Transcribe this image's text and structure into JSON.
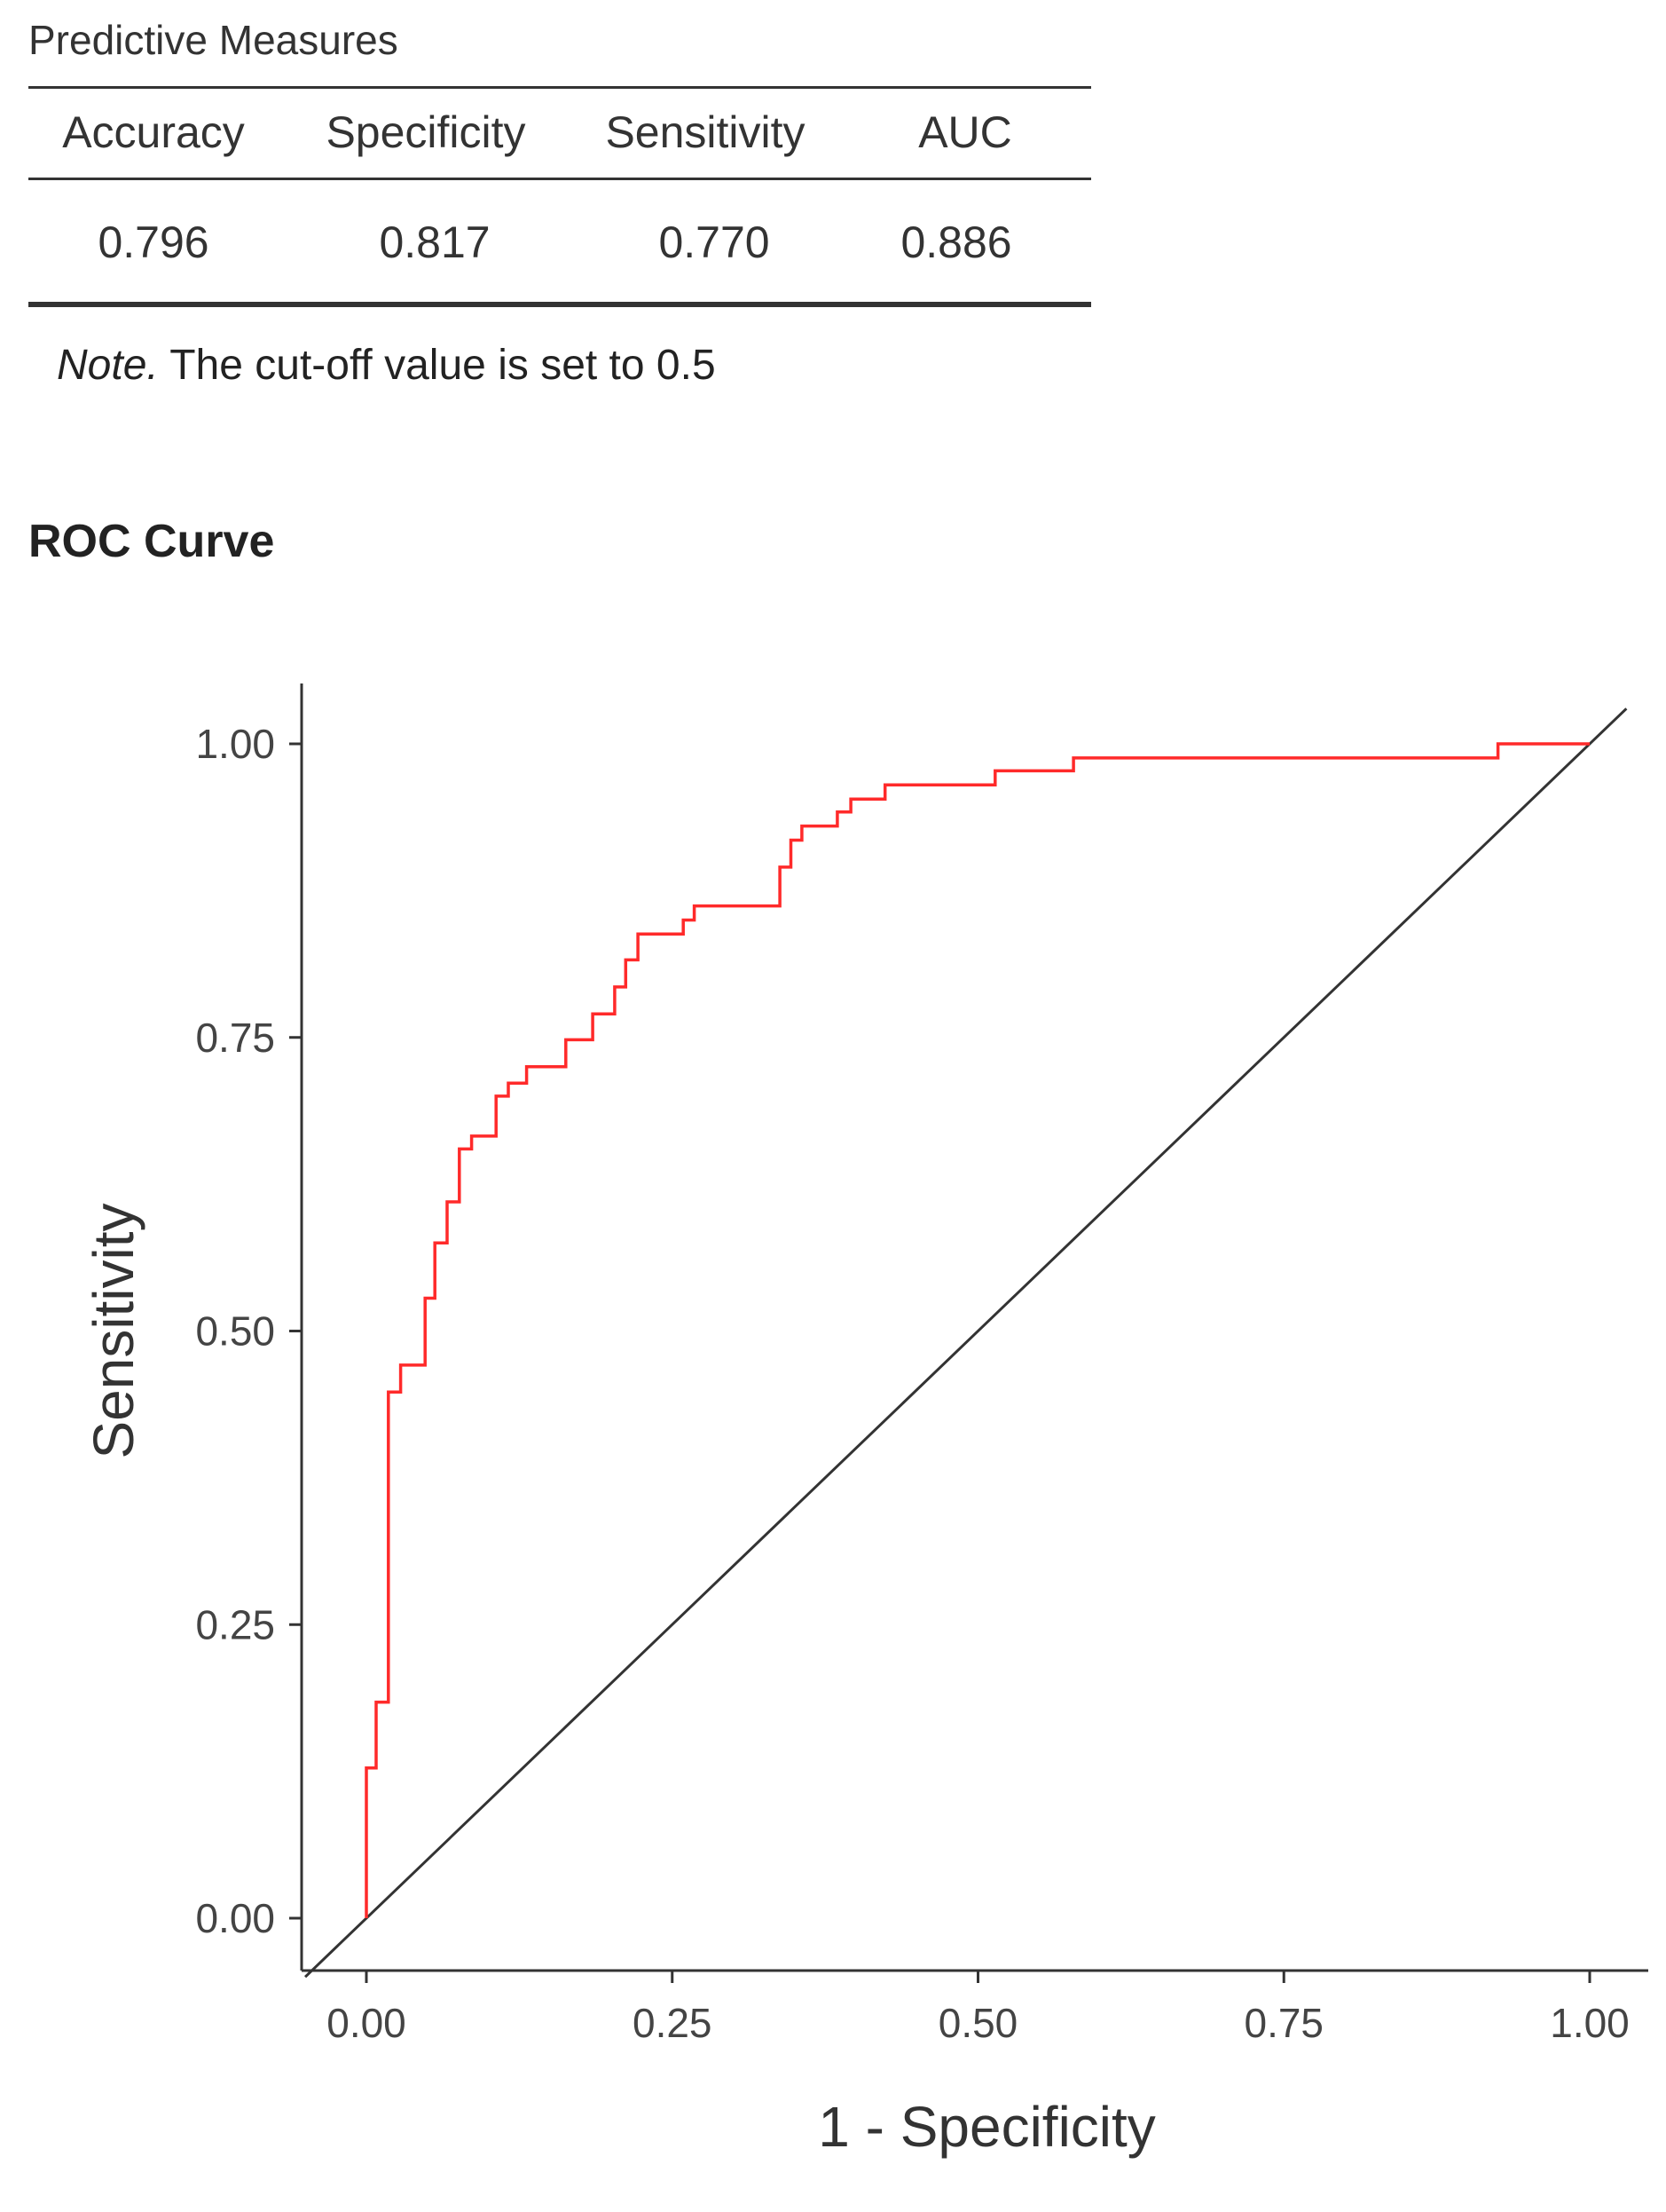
{
  "predictive_measures": {
    "title": "Predictive Measures",
    "columns": [
      "Accuracy",
      "Specificity",
      "Sensitivity",
      "AUC"
    ],
    "values": [
      "0.796",
      "0.817",
      "0.770",
      "0.886"
    ],
    "note_label": "Note.",
    "note_text": " The cut-off value is set to 0.5"
  },
  "roc_section_title": "ROC Curve",
  "chart_data": {
    "type": "line",
    "title": "",
    "xlabel": "1 - Specificity",
    "ylabel": "Sensitivity",
    "xlim": [
      -0.05,
      1.03
    ],
    "ylim": [
      -0.05,
      1.05
    ],
    "x_ticks": [
      "0.00",
      "0.25",
      "0.50",
      "0.75",
      "1.00"
    ],
    "y_ticks": [
      "0.00",
      "0.25",
      "0.50",
      "0.75",
      "1.00"
    ],
    "grid": false,
    "colors": {
      "roc": "#ff2a2a",
      "reference": "#333333"
    },
    "series": [
      {
        "values_xy": [
          [
            0.0,
            0.0
          ],
          [
            0.0,
            0.128
          ],
          [
            0.008,
            0.128
          ],
          [
            0.008,
            0.184
          ],
          [
            0.018,
            0.184
          ],
          [
            0.018,
            0.448
          ],
          [
            0.028,
            0.448
          ],
          [
            0.028,
            0.471
          ],
          [
            0.048,
            0.471
          ],
          [
            0.048,
            0.528
          ],
          [
            0.056,
            0.528
          ],
          [
            0.056,
            0.575
          ],
          [
            0.066,
            0.575
          ],
          [
            0.066,
            0.61
          ],
          [
            0.076,
            0.61
          ],
          [
            0.076,
            0.655
          ],
          [
            0.086,
            0.655
          ],
          [
            0.086,
            0.666
          ],
          [
            0.106,
            0.666
          ],
          [
            0.106,
            0.7
          ],
          [
            0.116,
            0.7
          ],
          [
            0.116,
            0.711
          ],
          [
            0.131,
            0.711
          ],
          [
            0.131,
            0.725
          ],
          [
            0.163,
            0.725
          ],
          [
            0.163,
            0.748
          ],
          [
            0.185,
            0.748
          ],
          [
            0.185,
            0.77
          ],
          [
            0.203,
            0.77
          ],
          [
            0.203,
            0.793
          ],
          [
            0.212,
            0.793
          ],
          [
            0.212,
            0.816
          ],
          [
            0.222,
            0.816
          ],
          [
            0.222,
            0.838
          ],
          [
            0.259,
            0.838
          ],
          [
            0.259,
            0.85
          ],
          [
            0.268,
            0.85
          ],
          [
            0.268,
            0.862
          ],
          [
            0.338,
            0.862
          ],
          [
            0.338,
            0.895
          ],
          [
            0.347,
            0.895
          ],
          [
            0.347,
            0.918
          ],
          [
            0.356,
            0.918
          ],
          [
            0.356,
            0.93
          ],
          [
            0.385,
            0.93
          ],
          [
            0.385,
            0.942
          ],
          [
            0.396,
            0.942
          ],
          [
            0.396,
            0.953
          ],
          [
            0.424,
            0.953
          ],
          [
            0.424,
            0.965
          ],
          [
            0.514,
            0.965
          ],
          [
            0.514,
            0.977
          ],
          [
            0.578,
            0.977
          ],
          [
            0.578,
            0.988
          ],
          [
            0.925,
            0.988
          ],
          [
            0.925,
            1.0
          ],
          [
            1.0,
            1.0
          ]
        ]
      },
      {
        "values_xy": [
          [
            -0.05,
            -0.05
          ],
          [
            1.03,
            1.03
          ]
        ]
      }
    ]
  }
}
